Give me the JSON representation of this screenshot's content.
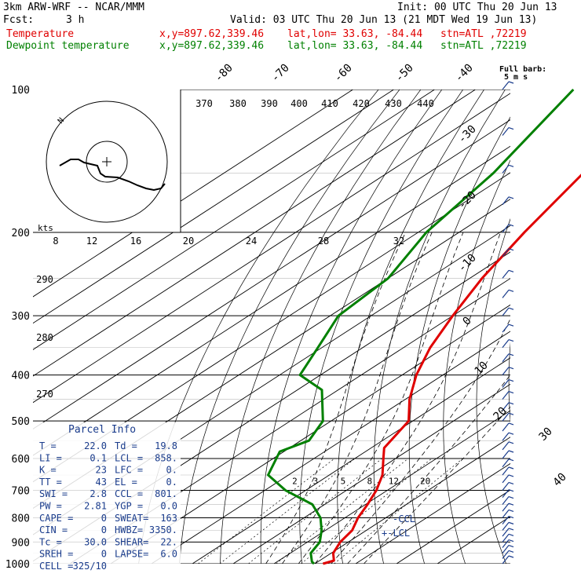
{
  "header": {
    "model": "3km ARW-WRF -- NCAR/MMM",
    "init": "Init: 00 UTC Thu 20 Jun 13",
    "fcst_label": "Fcst:",
    "fcst_value": "3 h",
    "valid": "Valid: 03 UTC Thu 20 Jun 13 (21 MDT Wed 19 Jun 13)",
    "lines": [
      {
        "name": "Temperature",
        "xy": "x,y=897.62,339.46",
        "latlon": "lat,lon= 33.63, -84.44",
        "stn": "stn=ATL ,72219",
        "color": "#e00000"
      },
      {
        "name": "Dewpoint temperature",
        "xy": "x,y=897.62,339.46",
        "latlon": "lat,lon= 33.63, -84.44",
        "stn": "stn=ATL ,72219",
        "color": "#008000"
      }
    ]
  },
  "full_barb_label": "Full barb:",
  "full_barb_value": "5 m s",
  "hodograph": {
    "speed_rings": [
      "8",
      "12",
      "16",
      "20",
      "24",
      "28",
      "32"
    ],
    "units_label": "kts",
    "north_label": "N"
  },
  "theta_e_labels": [
    "370",
    "380",
    "390",
    "400",
    "410",
    "420",
    "430",
    "440"
  ],
  "theta_labels": [
    "290",
    "280",
    "270"
  ],
  "mixing_ratio_labels": [
    "2",
    "3",
    "5",
    "8",
    "12",
    "20"
  ],
  "annotations": {
    "ccl": "CCL",
    "lcl": "LCL"
  },
  "parcel_info": {
    "title": "Parcel Info",
    "rows": [
      {
        "k1": "T  =",
        "v1": "22.0",
        "k2": "Td =",
        "v2": "19.8"
      },
      {
        "k1": "LI =",
        "v1": "0.1",
        "k2": "LCL =",
        "v2": "858."
      },
      {
        "k1": "K  =",
        "v1": "23",
        "k2": "LFC =",
        "v2": "0."
      },
      {
        "k1": "TT =",
        "v1": "43",
        "k2": "EL  =",
        "v2": "0."
      },
      {
        "k1": "SWI =",
        "v1": "2.8",
        "k2": "CCL =",
        "v2": "801."
      },
      {
        "k1": "PW =",
        "v1": "2.81",
        "k2": "YGP =",
        "v2": "0.0"
      },
      {
        "k1": "CAPE =",
        "v1": "0",
        "k2": "SWEAT=",
        "v2": "163"
      },
      {
        "k1": "CIN =",
        "v1": "0",
        "k2": "HWBZ=",
        "v2": "3350."
      },
      {
        "k1": "Tc =",
        "v1": "30.0",
        "k2": "SHEAR=",
        "v2": "22."
      },
      {
        "k1": "SREH =",
        "v1": "0",
        "k2": "LAPSE=",
        "v2": "6.0"
      },
      {
        "k1": "CELL =",
        "v1": "325/10",
        "k2": "",
        "v2": ""
      }
    ]
  },
  "chart_data": {
    "type": "line",
    "y_axis_ticks": [
      100,
      200,
      300,
      400,
      500,
      600,
      700,
      800,
      900,
      1000
    ],
    "ylim": [
      1000,
      100
    ],
    "y_scale": "log",
    "isotherm_labels": [
      -80,
      -70,
      -60,
      -50,
      -40,
      -30,
      -20,
      -10,
      0,
      10,
      20,
      30,
      40
    ],
    "xlim": [
      -20,
      40
    ],
    "series": [
      {
        "name": "Temperature",
        "color": "#e00000",
        "x": [
          22.0,
          23.5,
          20.5,
          18.0,
          16.5,
          13.2,
          10.5,
          7.3,
          3.0,
          -3.0,
          -6.8,
          -11.0,
          -19.0,
          -26.5,
          -33.5,
          -40.0,
          -47.0,
          -54.0,
          -62.0,
          -64.0
        ],
        "y": [
          1000,
          985,
          950,
          900,
          850,
          800,
          750,
          700,
          650,
          600,
          570,
          500,
          450,
          400,
          350,
          300,
          250,
          200,
          150,
          100
        ]
      },
      {
        "name": "Dewpoint temperature",
        "color": "#008000",
        "x": [
          19.8,
          18.5,
          15.0,
          13.0,
          9.0,
          4.0,
          -3.0,
          -15.0,
          -25.0,
          -31.0,
          -28.0,
          -32.0,
          -44.0,
          -55.0,
          -61.0,
          -68.0,
          -70.0,
          -78.0,
          -84.0,
          -96.0
        ],
        "y": [
          1000,
          990,
          950,
          900,
          850,
          800,
          750,
          700,
          650,
          580,
          550,
          500,
          430,
          400,
          350,
          300,
          250,
          200,
          150,
          100
        ]
      }
    ]
  }
}
